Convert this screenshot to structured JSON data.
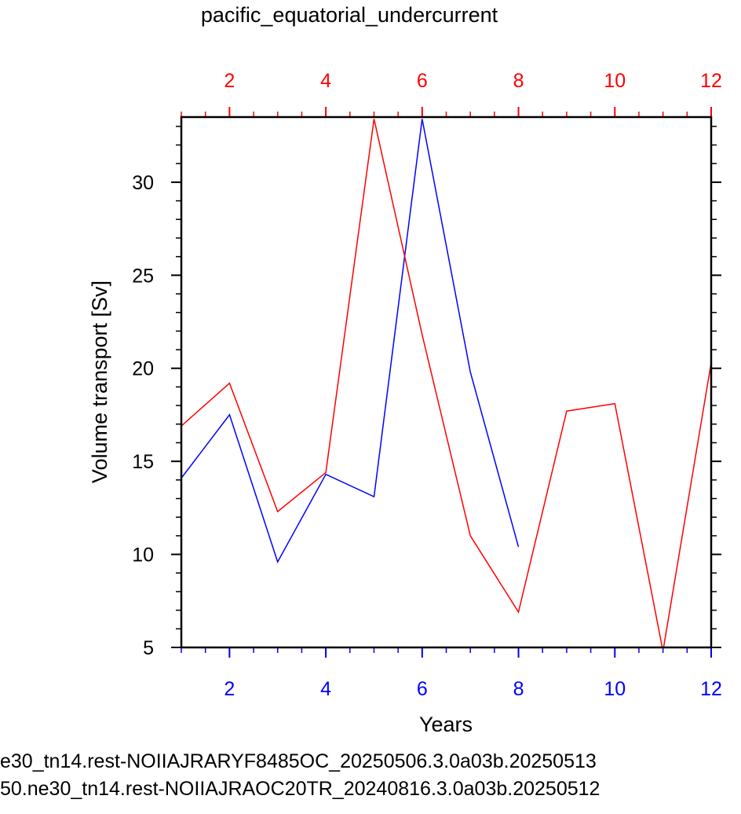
{
  "chart_data": {
    "type": "line",
    "title": "pacific_equatorial_undercurrent",
    "xlabel": "Years",
    "ylabel": "Volume transport [Sv]",
    "xlim": [
      1,
      12
    ],
    "ylim": [
      5,
      33.5
    ],
    "x_ticks": [
      2,
      4,
      6,
      8,
      10,
      12
    ],
    "y_ticks": [
      5,
      10,
      15,
      20,
      25,
      30
    ],
    "top_axis_color": "#ff0000",
    "bottom_axis_color": "#0000ff",
    "series": [
      {
        "name": "e30_tn14.rest-NOIIAJRARYF8485OC_20250506.3.0a03b.20250513",
        "color": "#0000ff",
        "x": [
          1,
          2,
          3,
          4,
          5,
          6,
          7,
          8
        ],
        "y": [
          14.1,
          17.5,
          9.6,
          14.3,
          13.1,
          33.4,
          19.8,
          10.4
        ]
      },
      {
        "name": "50.ne30_tn14.rest-NOIIAJRAOC20TR_20240816.3.0a03b.20250512",
        "color": "#ff0000",
        "x": [
          1,
          2,
          3,
          4,
          5,
          6,
          7,
          8,
          9,
          10,
          11,
          12
        ],
        "y": [
          16.9,
          19.2,
          12.3,
          14.4,
          33.4,
          21.8,
          11.0,
          6.9,
          17.7,
          18.1,
          4.8,
          20.3
        ]
      }
    ]
  }
}
